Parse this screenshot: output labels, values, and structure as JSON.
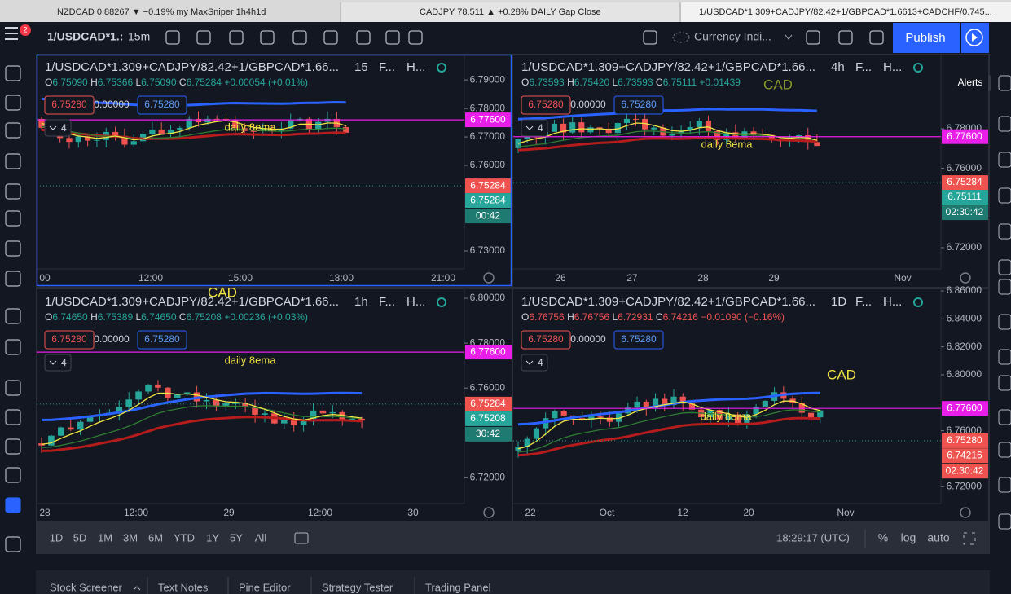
{
  "tabs": [
    "NZDCAD 0.88267 ▼ −0.19% my MaxSniper 1h4h1d",
    "CADJPY 78.511 ▲ +0.28% DAILY Gap Close",
    "1/USDCAD*1.309+CADJPY/82.42+1/GBPCAD*1.6613+CADCHF/0.745..."
  ],
  "toolbar": {
    "symbol": "1/USDCAD*1.:",
    "interval": "15m",
    "indicator": "Currency Indi...",
    "publish": "Publish",
    "badge": "2"
  },
  "tooltip": "Alerts",
  "panels": [
    {
      "title": "1/USDCAD*1.309+CADJPY/82.42+1/GBPCAD*1.66...",
      "interval": "15",
      "f": "F...",
      "h": "H...",
      "ohlc": {
        "o": "6.75090",
        "h": "6.75366",
        "l": "6.75090",
        "c": "6.75284",
        "change": "+0.00054 (+0.01%)"
      },
      "boxes": [
        "6.75280",
        "0.00000",
        "6.75280"
      ],
      "count": "4",
      "ylim": [
        6.7237,
        6.7989
      ],
      "yticks": [
        {
          "value": 6.79,
          "label": "6.79000"
        },
        {
          "value": 6.78,
          "label": "6.78000"
        },
        {
          "value": 6.77,
          "label": "6.77000"
        },
        {
          "value": 6.76,
          "label": "6.76000"
        },
        {
          "value": 6.73,
          "label": "6.73000"
        }
      ],
      "tags": [
        {
          "value": 6.776,
          "label": "6.77600",
          "color": "#e91ee9"
        },
        {
          "value": 6.75284,
          "label": "6.75284",
          "color": "#ef5350"
        },
        {
          "value": 6.75284,
          "label": "6.75284",
          "color": "#26a69a"
        },
        {
          "label": "00:42",
          "color": "#1f7a72"
        }
      ],
      "xlabels": [
        "00",
        "12:00",
        "15:00",
        "18:00",
        "21:00"
      ],
      "notes": [
        "daily 8ema"
      ]
    },
    {
      "title": "1/USDCAD*1.309+CADJPY/82.42+1/GBPCAD*1.66...",
      "interval": "4h",
      "f": "F...",
      "h": "H...",
      "ohlc": {
        "o": "6.73593",
        "h": "6.75420",
        "l": "6.73593",
        "c": "6.75111",
        "change": "+0.01439"
      },
      "boxes": [
        "6.75280",
        "0.00000",
        "6.75280"
      ],
      "count": "4",
      "ylim": [
        6.7093,
        6.8174
      ],
      "yticks": [
        {
          "value": 6.78,
          "label": "6.78000"
        },
        {
          "value": 6.76,
          "label": "6.76000"
        },
        {
          "value": 6.72,
          "label": "6.72000"
        }
      ],
      "tags": [
        {
          "value": 6.776,
          "label": "6.77600",
          "color": "#e91ee9"
        },
        {
          "value": 6.75284,
          "label": "6.75284",
          "color": "#ef5350"
        },
        {
          "value": 6.75111,
          "label": "6.75111",
          "color": "#26a69a"
        },
        {
          "label": "02:30:42",
          "color": "#1f7a72"
        }
      ],
      "xlabels": [
        "26",
        "27",
        "28",
        "29",
        "Nov"
      ],
      "notes": [
        "daily 8ema",
        "CAD"
      ]
    },
    {
      "title": "1/USDCAD*1.309+CADJPY/82.42+1/GBPCAD*1.66...",
      "interval": "1h",
      "f": "F...",
      "h": "H...",
      "ohlc": {
        "o": "6.74650",
        "h": "6.75389",
        "l": "6.74650",
        "c": "6.75208",
        "change": "+0.00236 (+0.03%)"
      },
      "boxes": [
        "6.75280",
        "0.00000",
        "6.75280"
      ],
      "count": "4",
      "ylim": [
        6.7085,
        6.804
      ],
      "yticks": [
        {
          "value": 6.8,
          "label": "6.80000"
        },
        {
          "value": 6.78,
          "label": "6.78000"
        },
        {
          "value": 6.76,
          "label": "6.76000"
        },
        {
          "value": 6.72,
          "label": "6.72000"
        }
      ],
      "tags": [
        {
          "value": 6.776,
          "label": "6.77600",
          "color": "#e91ee9"
        },
        {
          "value": 6.75284,
          "label": "6.75284",
          "color": "#ef5350"
        },
        {
          "value": 6.75208,
          "label": "6.75208",
          "color": "#26a69a"
        },
        {
          "label": "30:42",
          "color": "#1f7a72"
        }
      ],
      "xlabels": [
        "28",
        "12:00",
        "29",
        "12:00",
        "30"
      ],
      "notes": [
        "daily 8ema",
        "CAD"
      ]
    },
    {
      "title": "1/USDCAD*1.309+CADJPY/82.42+1/GBPCAD*1.66...",
      "interval": "1D",
      "f": "F...",
      "h": "H...",
      "ohlc": {
        "o": "6.76756",
        "h": "6.76756",
        "l": "6.72931",
        "c": "6.74216",
        "change": "−0.01090 (−0.16%)"
      },
      "boxes": [
        "6.75280",
        "0.00000",
        "6.75280"
      ],
      "count": "4",
      "ylim": [
        6.7079,
        6.8612
      ],
      "yticks": [
        {
          "value": 6.86,
          "label": "6.86000"
        },
        {
          "value": 6.84,
          "label": "6.84000"
        },
        {
          "value": 6.82,
          "label": "6.82000"
        },
        {
          "value": 6.8,
          "label": "6.80000"
        },
        {
          "value": 6.76,
          "label": "6.76000"
        },
        {
          "value": 6.72,
          "label": "6.72000"
        }
      ],
      "tags": [
        {
          "value": 6.776,
          "label": "6.77600",
          "color": "#e91ee9"
        },
        {
          "value": 6.7528,
          "label": "6.75280",
          "color": "#ef5350"
        },
        {
          "value": 6.74216,
          "label": "6.74216",
          "color": "#ef5350"
        },
        {
          "label": "02:30:42",
          "color": "#ef5350"
        }
      ],
      "xlabels": [
        "22",
        "Oct",
        "12",
        "20",
        "Nov"
      ],
      "notes": [
        "daily 8ema",
        "CAD"
      ]
    }
  ],
  "ranges": [
    "1D",
    "5D",
    "1M",
    "3M",
    "6M",
    "YTD",
    "1Y",
    "5Y",
    "All"
  ],
  "clock": "18:29:17 (UTC)",
  "scale": [
    "%",
    "log",
    "auto"
  ],
  "bottom_tabs": [
    "Stock Screener",
    "Text Notes",
    "Pine Editor",
    "Strategy Tester",
    "Trading Panel"
  ]
}
